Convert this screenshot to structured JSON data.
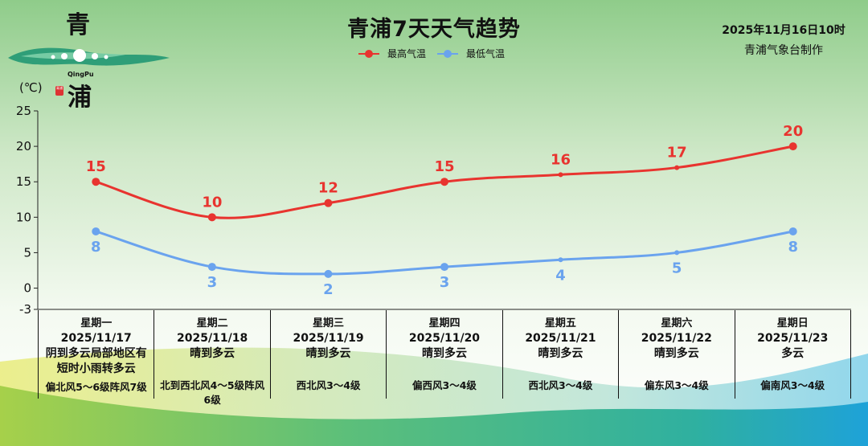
{
  "header": {
    "title": "青浦7天天气趋势",
    "issue_time": "2025年11月16日10时",
    "issuer": "青浦气象台制作"
  },
  "logo": {
    "char_top": "青",
    "char_bottom": "浦",
    "pinyin": "QingPu",
    "seal_text": "青浦"
  },
  "colors": {
    "max_temp": "#e8342f",
    "min_temp": "#6aa3ee"
  },
  "chart_data": {
    "type": "line",
    "title": "青浦7天天气趋势",
    "ylabel": "(℃)",
    "ylim": [
      -3,
      25
    ],
    "yticks": [
      "-3",
      "0",
      "5",
      "10",
      "15",
      "20",
      "25"
    ],
    "legend_position": "top-center",
    "categories": [
      "星期一",
      "星期二",
      "星期三",
      "星期四",
      "星期五",
      "星期六",
      "星期日"
    ],
    "series": [
      {
        "name": "最高气温",
        "values": [
          15,
          10,
          12,
          15,
          16,
          17,
          20
        ],
        "labels": [
          "15",
          "10",
          "12",
          "15",
          "16",
          "17",
          "20"
        ]
      },
      {
        "name": "最低气温",
        "values": [
          8,
          3,
          2,
          3,
          4,
          5,
          8
        ],
        "labels": [
          "8",
          "3",
          "2",
          "3",
          "4",
          "5",
          "8"
        ]
      }
    ]
  },
  "days": [
    {
      "weekday": "星期一",
      "date": "2025/11/17",
      "weather": "阴到多云局部地区有短时小雨转多云",
      "wind": "偏北风5～6级阵风7级"
    },
    {
      "weekday": "星期二",
      "date": "2025/11/18",
      "weather": "晴到多云",
      "wind": "北到西北风4～5级阵风6级"
    },
    {
      "weekday": "星期三",
      "date": "2025/11/19",
      "weather": "晴到多云",
      "wind": "西北风3～4级"
    },
    {
      "weekday": "星期四",
      "date": "2025/11/20",
      "weather": "晴到多云",
      "wind": "偏西风3～4级"
    },
    {
      "weekday": "星期五",
      "date": "2025/11/21",
      "weather": "晴到多云",
      "wind": "西北风3～4级"
    },
    {
      "weekday": "星期六",
      "date": "2025/11/22",
      "weather": "晴到多云",
      "wind": "偏东风3～4级"
    },
    {
      "weekday": "星期日",
      "date": "2025/11/23",
      "weather": "多云",
      "wind": "偏南风3～4级"
    }
  ]
}
